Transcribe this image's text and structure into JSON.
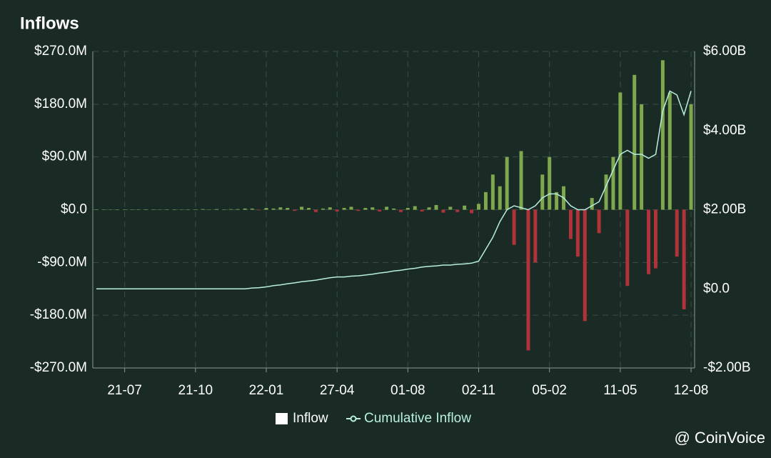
{
  "chart_data": {
    "type": "bar",
    "title": "Inflows",
    "categories": [
      null,
      null,
      null,
      null,
      "21-07",
      null,
      null,
      null,
      null,
      null,
      null,
      null,
      null,
      null,
      "21-10",
      null,
      null,
      null,
      null,
      null,
      null,
      null,
      null,
      null,
      "22-01",
      null,
      null,
      null,
      null,
      null,
      null,
      null,
      null,
      null,
      "27-04",
      null,
      null,
      null,
      null,
      null,
      null,
      null,
      null,
      null,
      "01-08",
      null,
      null,
      null,
      null,
      null,
      null,
      null,
      null,
      null,
      "02-11",
      null,
      null,
      null,
      null,
      null,
      null,
      null,
      null,
      null,
      "05-02",
      null,
      null,
      null,
      null,
      null,
      null,
      null,
      null,
      null,
      "11-05",
      null,
      null,
      null,
      null,
      null,
      null,
      null,
      null,
      null,
      "12-08"
    ],
    "series": [
      {
        "name": "Inflow",
        "color": "#ffffff",
        "positive_color": "#7fa84e",
        "negative_color": "#b0333a",
        "values": [
          0,
          0,
          0,
          0,
          0,
          0,
          0,
          0,
          0,
          0,
          0,
          0,
          0,
          0,
          0,
          1,
          0,
          1,
          0,
          1,
          1,
          2,
          2,
          -1,
          3,
          2,
          4,
          3,
          -2,
          5,
          3,
          -4,
          2,
          4,
          -3,
          3,
          5,
          -2,
          3,
          4,
          -3,
          5,
          2,
          -4,
          3,
          6,
          -3,
          4,
          8,
          -5,
          5,
          -4,
          7,
          -6,
          10,
          30,
          60,
          40,
          90,
          -60,
          100,
          -240,
          -90,
          60,
          90,
          30,
          40,
          -50,
          -80,
          -190,
          20,
          -40,
          60,
          90,
          200,
          -130,
          230,
          180,
          -110,
          -100,
          255,
          200,
          -80,
          -170,
          180
        ]
      },
      {
        "name": "Cumulative Inflow",
        "color": "#b8efe0",
        "axis": "y2",
        "values": [
          0,
          0,
          0,
          0,
          0,
          0,
          0,
          0,
          0,
          0,
          0,
          0,
          0,
          0,
          0,
          0,
          0,
          0,
          0,
          0,
          0,
          0,
          0.02,
          0.03,
          0.05,
          0.08,
          0.1,
          0.13,
          0.15,
          0.18,
          0.2,
          0.22,
          0.25,
          0.28,
          0.3,
          0.3,
          0.32,
          0.33,
          0.35,
          0.37,
          0.4,
          0.42,
          0.45,
          0.47,
          0.5,
          0.52,
          0.55,
          0.57,
          0.58,
          0.6,
          0.6,
          0.62,
          0.63,
          0.65,
          0.7,
          1.0,
          1.3,
          1.7,
          2.0,
          2.1,
          2.05,
          2.0,
          2.1,
          2.3,
          2.4,
          2.4,
          2.3,
          2.1,
          2.0,
          2.0,
          2.1,
          2.2,
          2.6,
          3.0,
          3.4,
          3.5,
          3.4,
          3.4,
          3.3,
          3.4,
          4.5,
          5.0,
          4.9,
          4.4,
          5.0
        ]
      }
    ],
    "ylim": [
      -270,
      270
    ],
    "yticks": [
      {
        "value": 270,
        "label": "$270.0M"
      },
      {
        "value": 180,
        "label": "$180.0M"
      },
      {
        "value": 90,
        "label": "$90.0M"
      },
      {
        "value": 0,
        "label": "$0.0"
      },
      {
        "value": -90,
        "label": "-$90.0M"
      },
      {
        "value": -180,
        "label": "-$180.0M"
      },
      {
        "value": -270,
        "label": "-$270.0M"
      }
    ],
    "y2lim": [
      -2,
      6
    ],
    "y2ticks": [
      {
        "value": 6,
        "label": "$6.00B"
      },
      {
        "value": 4,
        "label": "$4.00B"
      },
      {
        "value": 2,
        "label": "$2.00B"
      },
      {
        "value": 0,
        "label": "$0.0"
      },
      {
        "value": -2,
        "label": "-$2.00B"
      }
    ],
    "grid": true,
    "watermark": "@ CoinVoice"
  }
}
